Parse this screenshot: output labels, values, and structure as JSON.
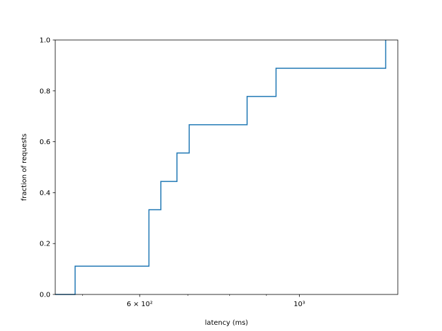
{
  "chart_data": {
    "type": "line",
    "title": "",
    "xlabel": "latency (ms)",
    "ylabel": "fraction of requests",
    "x_scale": "log",
    "xlim": [
      458,
      1370
    ],
    "ylim": [
      0,
      1.0
    ],
    "grid": false,
    "legend": "none",
    "series": [
      {
        "style": "step-post",
        "color": "#1f77b4",
        "x": [
          458,
          488,
          618,
          642,
          676,
          703,
          846,
          928,
          1318,
          1318
        ],
        "y": [
          0.0,
          0.111,
          0.333,
          0.444,
          0.556,
          0.667,
          0.778,
          0.889,
          0.889,
          1.0
        ]
      }
    ],
    "x_major_ticks": [
      {
        "value": 600,
        "label": "6 × 10²"
      },
      {
        "value": 1000,
        "label": "10³"
      }
    ],
    "x_minor_ticks": [
      500,
      700,
      800,
      900
    ],
    "y_ticks": [
      {
        "value": 0.0,
        "label": "0.0"
      },
      {
        "value": 0.2,
        "label": "0.2"
      },
      {
        "value": 0.4,
        "label": "0.4"
      },
      {
        "value": 0.6,
        "label": "0.6"
      },
      {
        "value": 0.8,
        "label": "0.8"
      },
      {
        "value": 1.0,
        "label": "1.0"
      }
    ]
  }
}
